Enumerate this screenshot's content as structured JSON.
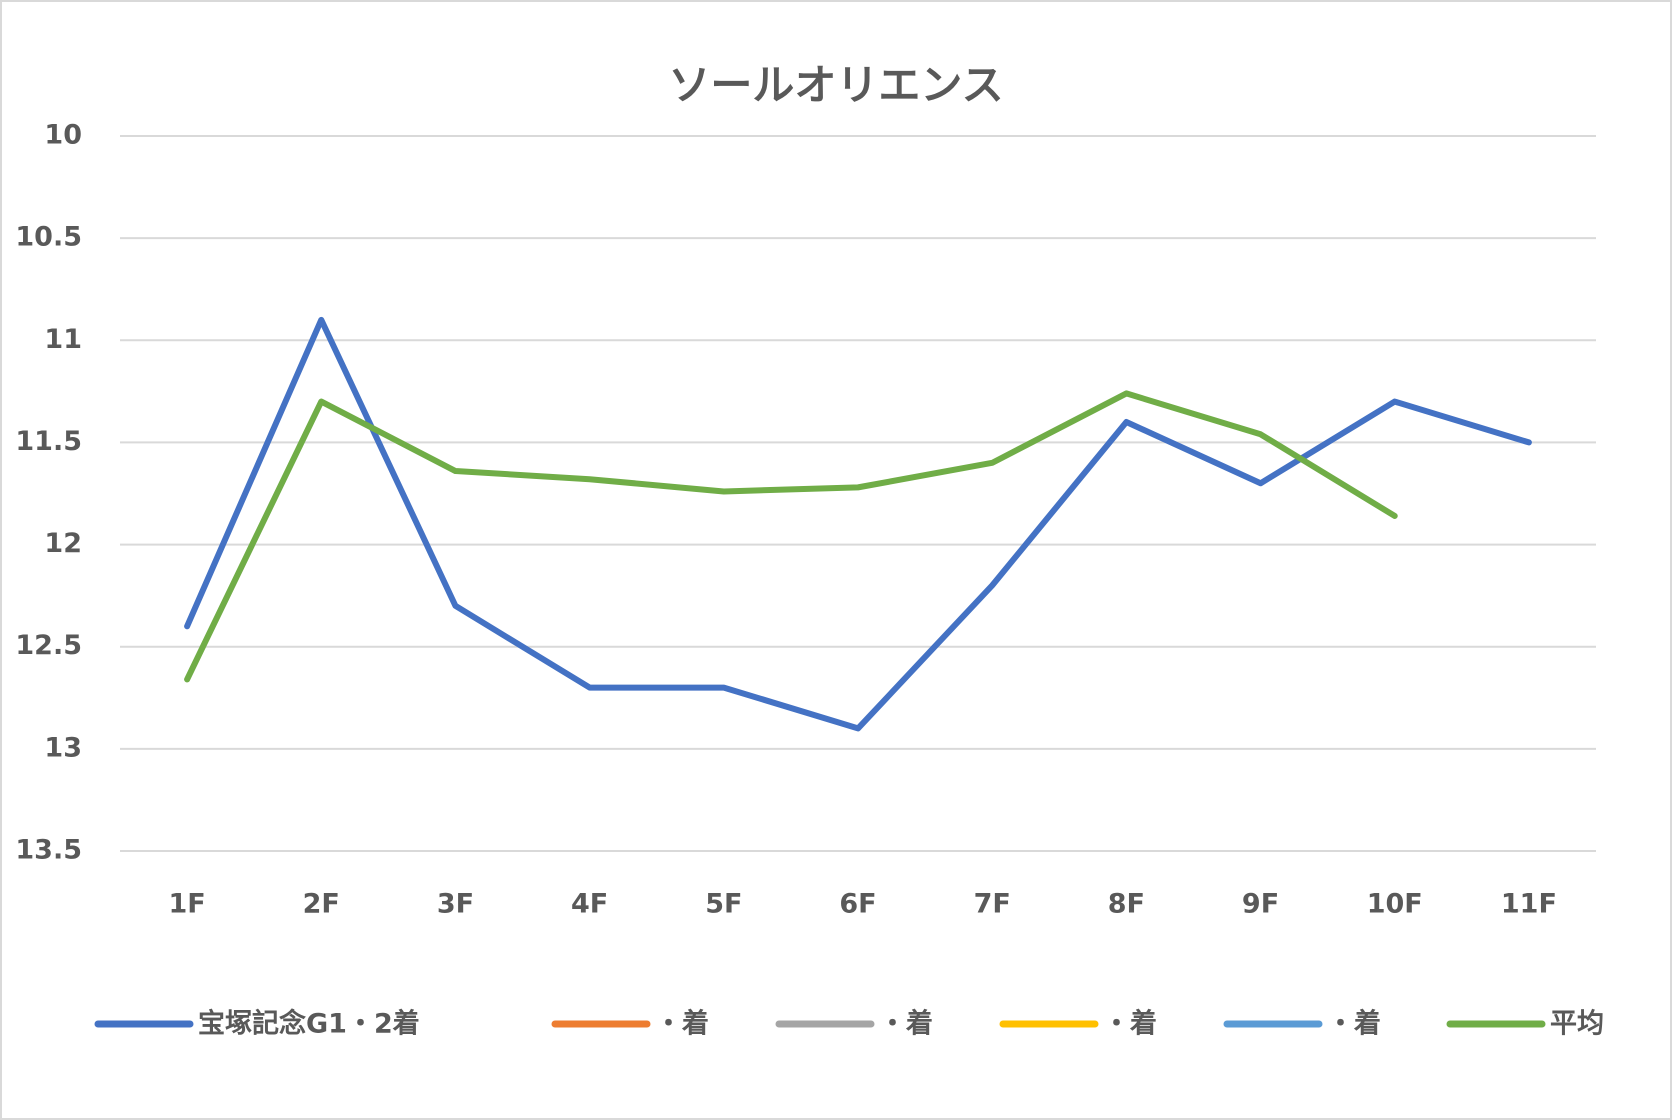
{
  "chart_data": {
    "type": "line",
    "title": "ソールオリエンス",
    "categories": [
      "1F",
      "2F",
      "3F",
      "4F",
      "5F",
      "6F",
      "7F",
      "8F",
      "9F",
      "10F",
      "11F"
    ],
    "series": [
      {
        "name": "宝塚記念G1・2着",
        "color": "#4472c4",
        "values": [
          12.4,
          10.9,
          12.3,
          12.7,
          12.7,
          12.9,
          12.2,
          11.4,
          11.7,
          11.3,
          11.5
        ]
      },
      {
        "name": "・着",
        "color": "#ed7d31",
        "values": [
          null,
          null,
          null,
          null,
          null,
          null,
          null,
          null,
          null,
          null,
          null
        ]
      },
      {
        "name": "・着",
        "color": "#a5a5a5",
        "values": [
          null,
          null,
          null,
          null,
          null,
          null,
          null,
          null,
          null,
          null,
          null
        ]
      },
      {
        "name": "・着",
        "color": "#ffc000",
        "values": [
          null,
          null,
          null,
          null,
          null,
          null,
          null,
          null,
          null,
          null,
          null
        ]
      },
      {
        "name": "・着",
        "color": "#5b9bd5",
        "values": [
          null,
          null,
          null,
          null,
          null,
          null,
          null,
          null,
          null,
          null,
          null
        ]
      },
      {
        "name": "平均",
        "color": "#70ad47",
        "values": [
          12.66,
          11.3,
          11.64,
          11.68,
          11.74,
          11.72,
          11.6,
          11.26,
          11.46,
          11.86,
          null
        ]
      }
    ],
    "ylim": [
      10,
      13.5
    ],
    "yticks": [
      10,
      10.5,
      11,
      11.5,
      12,
      12.5,
      13,
      13.5
    ],
    "y_inverted": true,
    "grid": true,
    "legend": "bottom"
  }
}
